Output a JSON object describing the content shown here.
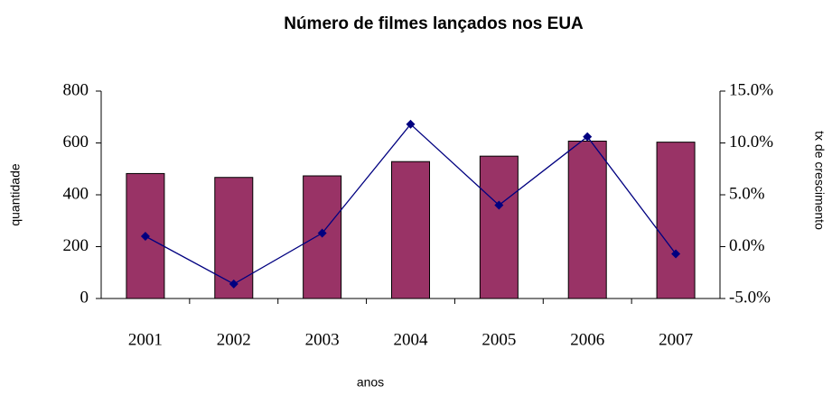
{
  "chart_data": {
    "type": "bar_line",
    "title": "Número de filmes lançados nos EUA",
    "x_label": "anos",
    "y_label": "quantidade",
    "y2_label": "tx de crescimento",
    "categories": [
      "2001",
      "2002",
      "2003",
      "2004",
      "2005",
      "2006",
      "2007"
    ],
    "series": [
      {
        "name": "quantidade",
        "type": "bar",
        "color": "#993366",
        "values": [
          482,
          467,
          473,
          528,
          549,
          607,
          603
        ]
      },
      {
        "name": "tx de crescimento",
        "type": "line",
        "axis": "y2",
        "color": "#000080",
        "values": [
          1.0,
          -3.6,
          1.3,
          11.8,
          4.0,
          10.6,
          -0.7
        ]
      }
    ],
    "ylim": [
      0,
      800
    ],
    "yticks": [
      0,
      200,
      400,
      600,
      800
    ],
    "y2lim": [
      -5,
      15
    ],
    "y2ticks": [
      {
        "value": -5,
        "label": "-5.0%"
      },
      {
        "value": 0,
        "label": "0.0%"
      },
      {
        "value": 5,
        "label": "5.0%"
      },
      {
        "value": 10,
        "label": "10.0%"
      },
      {
        "value": 15,
        "label": "15.0%"
      }
    ],
    "grid": false
  }
}
